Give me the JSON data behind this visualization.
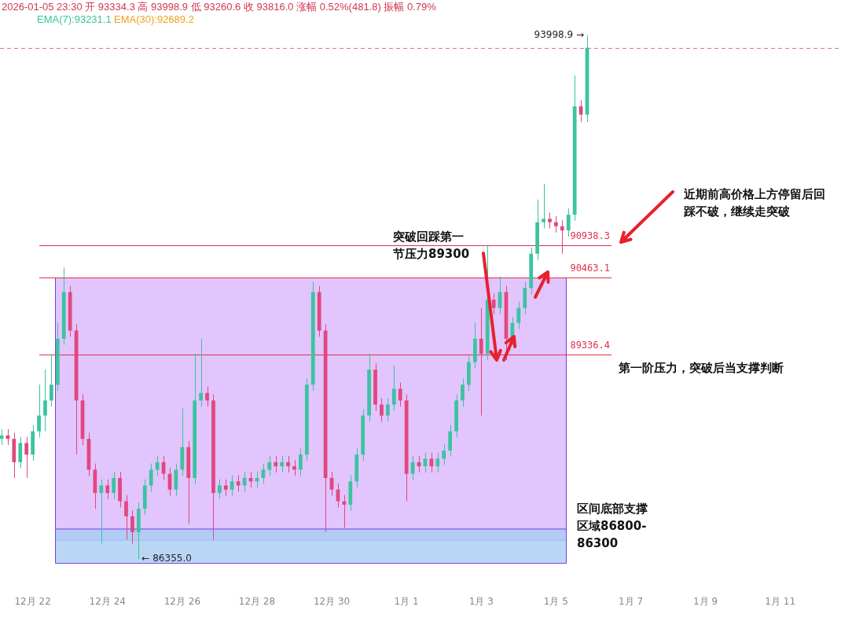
{
  "chart_data": {
    "type": "candlestick",
    "title": "2026-01-05 23:30 开 93334.3 高 93998.9 低 93260.6 收 93816.0 涨幅 0.52%(481.8) 振幅 0.79%",
    "x": [
      "2025-12-21T04:00",
      "2025-12-21T08:00",
      "2025-12-21T12:00",
      "2025-12-21T16:00",
      "2025-12-21T20:00",
      "2025-12-22T00:00",
      "2025-12-22T04:00",
      "2025-12-22T08:00",
      "2025-12-22T12:00",
      "2025-12-22T16:00",
      "2025-12-22T20:00",
      "2025-12-23T00:00",
      "2025-12-23T04:00",
      "2025-12-23T08:00",
      "2025-12-23T12:00",
      "2025-12-23T16:00",
      "2025-12-23T20:00",
      "2025-12-24T00:00",
      "2025-12-24T04:00",
      "2025-12-24T08:00",
      "2025-12-24T12:00",
      "2025-12-24T16:00",
      "2025-12-24T20:00",
      "2025-12-25T00:00",
      "2025-12-25T04:00",
      "2025-12-25T08:00",
      "2025-12-25T12:00",
      "2025-12-25T16:00",
      "2025-12-25T20:00",
      "2025-12-26T00:00",
      "2025-12-26T04:00",
      "2025-12-26T08:00",
      "2025-12-26T12:00",
      "2025-12-26T16:00",
      "2025-12-26T20:00",
      "2025-12-27T00:00",
      "2025-12-27T04:00",
      "2025-12-27T08:00",
      "2025-12-27T12:00",
      "2025-12-27T16:00",
      "2025-12-27T20:00",
      "2025-12-28T00:00",
      "2025-12-28T04:00",
      "2025-12-28T08:00",
      "2025-12-28T12:00",
      "2025-12-28T16:00",
      "2025-12-28T20:00",
      "2025-12-29T00:00",
      "2025-12-29T04:00",
      "2025-12-29T08:00",
      "2025-12-29T12:00",
      "2025-12-29T16:00",
      "2025-12-29T20:00",
      "2025-12-30T00:00",
      "2025-12-30T04:00",
      "2025-12-30T08:00",
      "2025-12-30T12:00",
      "2025-12-30T16:00",
      "2025-12-30T20:00",
      "2025-12-31T00:00",
      "2025-12-31T04:00",
      "2025-12-31T08:00",
      "2025-12-31T12:00",
      "2025-12-31T16:00",
      "2025-12-31T20:00",
      "2026-01-01T00:00",
      "2026-01-01T04:00",
      "2026-01-01T08:00",
      "2026-01-01T12:00",
      "2026-01-01T16:00",
      "2026-01-01T20:00",
      "2026-01-02T00:00",
      "2026-01-02T04:00",
      "2026-01-02T08:00",
      "2026-01-02T12:00",
      "2026-01-02T16:00",
      "2026-01-02T20:00",
      "2026-01-03T00:00",
      "2026-01-03T04:00",
      "2026-01-03T08:00",
      "2026-01-03T12:00",
      "2026-01-03T16:00",
      "2026-01-03T20:00",
      "2026-01-04T00:00",
      "2026-01-04T04:00",
      "2026-01-04T08:00",
      "2026-01-04T12:00",
      "2026-01-04T16:00",
      "2026-01-04T20:00",
      "2026-01-05T00:00",
      "2026-01-05T04:00",
      "2026-01-05T08:00",
      "2026-01-05T12:00",
      "2026-01-05T16:00",
      "2026-01-05T20:00"
    ],
    "ohlc": [
      [
        88110,
        88250,
        88020,
        88160
      ],
      [
        88160,
        88250,
        88020,
        88110
      ],
      [
        88110,
        88200,
        87540,
        87770
      ],
      [
        87770,
        88140,
        87680,
        88050
      ],
      [
        88050,
        88140,
        87540,
        87880
      ],
      [
        87880,
        88310,
        87790,
        88220
      ],
      [
        88220,
        88900,
        88130,
        88450
      ],
      [
        88450,
        89120,
        88220,
        88670
      ],
      [
        88670,
        89350,
        88580,
        88900
      ],
      [
        88900,
        89800,
        88810,
        89570
      ],
      [
        89570,
        90610,
        89480,
        90250
      ],
      [
        90250,
        90340,
        89600,
        89690
      ],
      [
        89690,
        89780,
        87880,
        88670
      ],
      [
        88670,
        88760,
        88020,
        88110
      ],
      [
        88110,
        88200,
        87570,
        87660
      ],
      [
        87660,
        87750,
        87090,
        87320
      ],
      [
        87320,
        87520,
        86580,
        87430
      ],
      [
        87430,
        87520,
        87230,
        87320
      ],
      [
        87320,
        87630,
        87230,
        87540
      ],
      [
        87540,
        87630,
        87110,
        87200
      ],
      [
        87200,
        87290,
        86640,
        86980
      ],
      [
        86980,
        87070,
        86580,
        86750
      ],
      [
        86750,
        87180,
        86355.0,
        87090
      ],
      [
        87090,
        87520,
        87000,
        87430
      ],
      [
        87430,
        87750,
        87340,
        87660
      ],
      [
        87660,
        87860,
        87570,
        87770
      ],
      [
        87770,
        87860,
        87510,
        87600
      ],
      [
        87600,
        87690,
        87280,
        87370
      ],
      [
        87370,
        87750,
        87280,
        87660
      ],
      [
        87660,
        88560,
        87570,
        87990
      ],
      [
        87990,
        88080,
        86870,
        87540
      ],
      [
        87540,
        89350,
        87450,
        88670
      ],
      [
        88670,
        89570,
        88580,
        88780
      ],
      [
        88780,
        88870,
        88580,
        88670
      ],
      [
        88670,
        88760,
        86640,
        87320
      ],
      [
        87320,
        87520,
        87230,
        87430
      ],
      [
        87430,
        87520,
        87280,
        87370
      ],
      [
        87370,
        87580,
        87280,
        87490
      ],
      [
        87490,
        87580,
        87340,
        87430
      ],
      [
        87430,
        87630,
        87340,
        87540
      ],
      [
        87540,
        87630,
        87400,
        87490
      ],
      [
        87490,
        87630,
        87400,
        87540
      ],
      [
        87540,
        87750,
        87450,
        87660
      ],
      [
        87660,
        87860,
        87570,
        87770
      ],
      [
        87770,
        87860,
        87620,
        87710
      ],
      [
        87710,
        87860,
        87620,
        87770
      ],
      [
        87770,
        87860,
        87620,
        87710
      ],
      [
        87710,
        87800,
        87570,
        87660
      ],
      [
        87660,
        87970,
        87570,
        87880
      ],
      [
        87880,
        88990,
        87790,
        88900
      ],
      [
        88900,
        90400,
        88810,
        90250
      ],
      [
        90250,
        90340,
        89600,
        89690
      ],
      [
        89690,
        89780,
        86750,
        87540
      ],
      [
        87540,
        87630,
        87280,
        87370
      ],
      [
        87370,
        87460,
        87110,
        87200
      ],
      [
        87200,
        87290,
        86810,
        87150
      ],
      [
        87150,
        87580,
        87060,
        87490
      ],
      [
        87490,
        87970,
        87400,
        87880
      ],
      [
        87880,
        88540,
        87790,
        88450
      ],
      [
        88450,
        89350,
        88360,
        89120
      ],
      [
        89120,
        89210,
        88520,
        88610
      ],
      [
        88610,
        88700,
        88360,
        88450
      ],
      [
        88450,
        88700,
        88360,
        88610
      ],
      [
        88610,
        89180,
        88520,
        88840
      ],
      [
        88840,
        88930,
        88580,
        88670
      ],
      [
        88670,
        88760,
        87200,
        87600
      ],
      [
        87600,
        87860,
        87510,
        87770
      ],
      [
        87770,
        87860,
        87620,
        87710
      ],
      [
        87710,
        87910,
        87620,
        87820
      ],
      [
        87820,
        87910,
        87620,
        87710
      ],
      [
        87710,
        87910,
        87620,
        87820
      ],
      [
        87820,
        88030,
        87730,
        87940
      ],
      [
        87940,
        88310,
        87850,
        88220
      ],
      [
        88220,
        88760,
        88130,
        88670
      ],
      [
        88670,
        88990,
        88580,
        88900
      ],
      [
        88900,
        89320,
        88810,
        89230
      ],
      [
        89230,
        89800,
        89140,
        89570
      ],
      [
        89570,
        90020,
        88450,
        89350
      ],
      [
        89350,
        90940,
        89260,
        90140
      ],
      [
        90140,
        90230,
        89930,
        90020
      ],
      [
        90020,
        90480,
        89930,
        90250
      ],
      [
        90250,
        90340,
        89260,
        89570
      ],
      [
        89570,
        89890,
        89480,
        89800
      ],
      [
        89800,
        90110,
        89710,
        90020
      ],
      [
        90020,
        90400,
        89930,
        90310
      ],
      [
        90310,
        90900,
        90220,
        90810
      ],
      [
        90810,
        91600,
        90720,
        91270
      ],
      [
        91270,
        91830,
        91180,
        91320
      ],
      [
        91320,
        91410,
        91180,
        91270
      ],
      [
        91270,
        91360,
        91120,
        91210
      ],
      [
        91210,
        91300,
        90810,
        91150
      ],
      [
        91150,
        91470,
        91060,
        91380
      ],
      [
        91380,
        93410,
        91290,
        92960
      ],
      [
        92960,
        93050,
        92730,
        92840
      ],
      [
        92840,
        93998.9,
        92730,
        93816
      ]
    ],
    "xlim": [
      "2025-12-21T03:00",
      "2026-01-12T15:00"
    ],
    "xticks": [
      {
        "value": "2025-12-22",
        "label": "12月 22"
      },
      {
        "value": "2025-12-24",
        "label": "12月 24"
      },
      {
        "value": "2025-12-26",
        "label": "12月 26"
      },
      {
        "value": "2025-12-28",
        "label": "12月 28"
      },
      {
        "value": "2025-12-30",
        "label": "12月 30"
      },
      {
        "value": "2026-01-01",
        "label": "1月 1"
      },
      {
        "value": "2026-01-03",
        "label": "1月 3"
      },
      {
        "value": "2026-01-05",
        "label": "1月 5"
      },
      {
        "value": "2026-01-07",
        "label": "1月 7"
      },
      {
        "value": "2026-01-09",
        "label": "1月 9"
      },
      {
        "value": "2026-01-11",
        "label": "1月 11"
      }
    ],
    "tick_labels": "x",
    "grid": false,
    "legend": false,
    "ref_lines": [
      {
        "axis": "y",
        "value": 90938.3,
        "label": "90938.3",
        "color": "#e0304a"
      },
      {
        "axis": "y",
        "value": 90463.1,
        "label": "90463.1",
        "color": "#e0304a"
      },
      {
        "axis": "y",
        "value": 89336.4,
        "label": "89336.4",
        "color": "#e0304a"
      },
      {
        "axis": "y",
        "value": 93816.0,
        "color": "#e07090",
        "line_style": "dashed"
      }
    ],
    "bands": [
      {
        "axis": "y",
        "from": 86640,
        "to": 90463.1,
        "color": "#d9b6fb"
      },
      {
        "axis": "y",
        "from": 86300,
        "to": 86800,
        "label": "区间底部支撑区域86800-86300",
        "color": "#a8cdf2"
      }
    ],
    "annotations": [
      "EMA(7):93231.1",
      "EMA(30):92689.2",
      "突破回踩第一节压力89300",
      "近期前高价格上方停留后回踩不破，继续走突破",
      "第一阶压力，突破后当支撑判断",
      {
        "text": "93998.9 →",
        "x": "2026-01-05T20:00",
        "y": 93998.9
      },
      {
        "text": "← 86355.0",
        "x": "2025-12-24T20:00",
        "y": 86355.0
      }
    ]
  }
}
